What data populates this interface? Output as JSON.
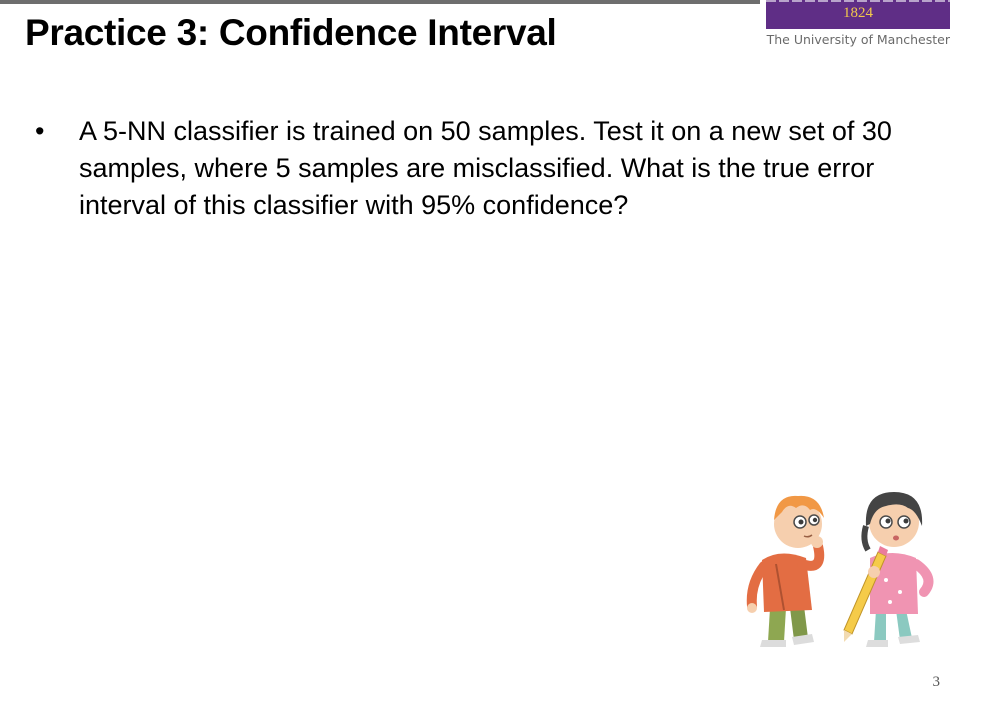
{
  "slide": {
    "title": "Practice 3: Confidence Interval",
    "bullets": [
      "A 5-NN classifier is trained on 50 samples. Test it on a new set of 30 samples, where 5 samples are misclassified. What is the true error interval of this classifier with 95% confidence?"
    ],
    "bullet_symbol": "•",
    "page_number": "3",
    "illustration": "two-thinking-kids"
  },
  "logo": {
    "year": "1824",
    "university": "The University of Manchester",
    "brand_color": "#5f2e86",
    "year_color": "#f2c94c"
  }
}
